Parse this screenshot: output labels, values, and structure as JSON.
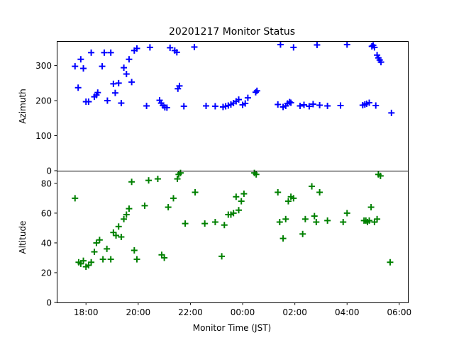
{
  "chart_data": {
    "type": "scatter",
    "title": "20201217 Monitor Status",
    "xlabel": "Monitor Time (JST)",
    "x_unit": "hours (JST)",
    "xlim": [
      16.88,
      30.33
    ],
    "xticks": [
      {
        "value": 18,
        "label": "18:00"
      },
      {
        "value": 20,
        "label": "20:00"
      },
      {
        "value": 22,
        "label": "22:00"
      },
      {
        "value": 24,
        "label": "00:00"
      },
      {
        "value": 26,
        "label": "02:00"
      },
      {
        "value": 28,
        "label": "04:00"
      },
      {
        "value": 30,
        "label": "06:00"
      }
    ],
    "marker": "plus",
    "grid": false,
    "panels": [
      {
        "ylabel": "Azimuth",
        "ylim": [
          0,
          370
        ],
        "yticks": [
          0,
          100,
          200,
          300
        ],
        "color": "#0000ff",
        "points": [
          [
            17.58,
            298
          ],
          [
            17.7,
            237
          ],
          [
            17.8,
            318
          ],
          [
            17.9,
            292
          ],
          [
            18.0,
            197
          ],
          [
            18.1,
            197
          ],
          [
            18.2,
            337
          ],
          [
            18.32,
            211
          ],
          [
            18.4,
            216
          ],
          [
            18.45,
            223
          ],
          [
            18.62,
            298
          ],
          [
            18.7,
            337
          ],
          [
            18.82,
            200
          ],
          [
            18.95,
            337
          ],
          [
            19.05,
            248
          ],
          [
            19.12,
            222
          ],
          [
            19.25,
            250
          ],
          [
            19.35,
            193
          ],
          [
            19.45,
            294
          ],
          [
            19.55,
            276
          ],
          [
            19.65,
            318
          ],
          [
            19.75,
            253
          ],
          [
            19.85,
            343
          ],
          [
            19.95,
            349
          ],
          [
            20.32,
            185
          ],
          [
            20.45,
            352
          ],
          [
            20.82,
            201
          ],
          [
            20.88,
            193
          ],
          [
            20.95,
            186
          ],
          [
            21.02,
            181
          ],
          [
            21.1,
            180
          ],
          [
            21.22,
            351
          ],
          [
            21.4,
            343
          ],
          [
            21.48,
            338
          ],
          [
            21.52,
            234
          ],
          [
            21.58,
            242
          ],
          [
            21.75,
            184
          ],
          [
            22.15,
            353
          ],
          [
            22.6,
            185
          ],
          [
            22.95,
            184
          ],
          [
            23.25,
            182
          ],
          [
            23.35,
            184
          ],
          [
            23.45,
            186
          ],
          [
            23.55,
            189
          ],
          [
            23.65,
            193
          ],
          [
            23.75,
            198
          ],
          [
            23.85,
            203
          ],
          [
            24.0,
            188
          ],
          [
            24.1,
            192
          ],
          [
            24.2,
            208
          ],
          [
            24.5,
            224
          ],
          [
            24.55,
            228
          ],
          [
            25.35,
            189
          ],
          [
            25.45,
            360
          ],
          [
            25.55,
            182
          ],
          [
            25.65,
            185
          ],
          [
            25.72,
            192
          ],
          [
            25.8,
            196
          ],
          [
            25.85,
            194
          ],
          [
            25.95,
            352
          ],
          [
            26.2,
            185
          ],
          [
            26.35,
            188
          ],
          [
            26.55,
            184
          ],
          [
            26.7,
            190
          ],
          [
            26.85,
            359
          ],
          [
            26.95,
            187
          ],
          [
            27.25,
            185
          ],
          [
            27.75,
            186
          ],
          [
            28.0,
            360
          ],
          [
            28.6,
            187
          ],
          [
            28.68,
            189
          ],
          [
            28.75,
            191
          ],
          [
            28.85,
            194
          ],
          [
            28.95,
            355
          ],
          [
            29.0,
            358
          ],
          [
            29.05,
            352
          ],
          [
            29.1,
            186
          ],
          [
            29.15,
            330
          ],
          [
            29.2,
            322
          ],
          [
            29.25,
            316
          ],
          [
            29.3,
            310
          ],
          [
            29.7,
            165
          ]
        ]
      },
      {
        "ylabel": "Altitude",
        "ylim": [
          0,
          88.5
        ],
        "yticks": [
          0,
          20,
          40,
          60,
          80
        ],
        "color": "#008000",
        "points": [
          [
            17.58,
            70
          ],
          [
            17.72,
            27
          ],
          [
            17.8,
            26
          ],
          [
            17.9,
            28
          ],
          [
            18.0,
            24
          ],
          [
            18.1,
            25
          ],
          [
            18.2,
            27
          ],
          [
            18.32,
            34
          ],
          [
            18.4,
            40
          ],
          [
            18.52,
            42
          ],
          [
            18.65,
            29
          ],
          [
            18.8,
            36
          ],
          [
            18.95,
            29
          ],
          [
            19.05,
            47
          ],
          [
            19.15,
            45
          ],
          [
            19.25,
            51
          ],
          [
            19.35,
            44
          ],
          [
            19.45,
            56
          ],
          [
            19.55,
            59
          ],
          [
            19.65,
            63
          ],
          [
            19.75,
            81
          ],
          [
            19.85,
            35
          ],
          [
            19.95,
            29
          ],
          [
            20.25,
            65
          ],
          [
            20.4,
            82
          ],
          [
            20.75,
            83
          ],
          [
            20.9,
            32
          ],
          [
            21.0,
            30
          ],
          [
            21.15,
            64
          ],
          [
            21.35,
            70
          ],
          [
            21.5,
            83
          ],
          [
            21.55,
            86
          ],
          [
            21.62,
            87
          ],
          [
            21.8,
            53
          ],
          [
            22.18,
            74
          ],
          [
            22.55,
            53
          ],
          [
            22.95,
            54
          ],
          [
            23.2,
            31
          ],
          [
            23.3,
            52
          ],
          [
            23.45,
            59
          ],
          [
            23.55,
            59
          ],
          [
            23.65,
            60
          ],
          [
            23.75,
            71
          ],
          [
            23.85,
            62
          ],
          [
            23.95,
            68
          ],
          [
            24.05,
            73
          ],
          [
            24.45,
            87
          ],
          [
            24.52,
            86
          ],
          [
            25.35,
            74
          ],
          [
            25.42,
            54
          ],
          [
            25.55,
            43
          ],
          [
            25.65,
            56
          ],
          [
            25.75,
            68
          ],
          [
            25.85,
            71
          ],
          [
            25.95,
            70
          ],
          [
            26.3,
            46
          ],
          [
            26.4,
            56
          ],
          [
            26.65,
            78
          ],
          [
            26.75,
            58
          ],
          [
            26.82,
            54
          ],
          [
            26.95,
            74
          ],
          [
            27.25,
            55
          ],
          [
            27.85,
            54
          ],
          [
            28.0,
            60
          ],
          [
            28.65,
            55
          ],
          [
            28.72,
            55
          ],
          [
            28.78,
            54
          ],
          [
            28.85,
            55
          ],
          [
            28.92,
            64
          ],
          [
            29.05,
            54
          ],
          [
            29.15,
            56
          ],
          [
            29.2,
            86
          ],
          [
            29.28,
            85
          ],
          [
            29.65,
            27
          ]
        ]
      }
    ]
  }
}
